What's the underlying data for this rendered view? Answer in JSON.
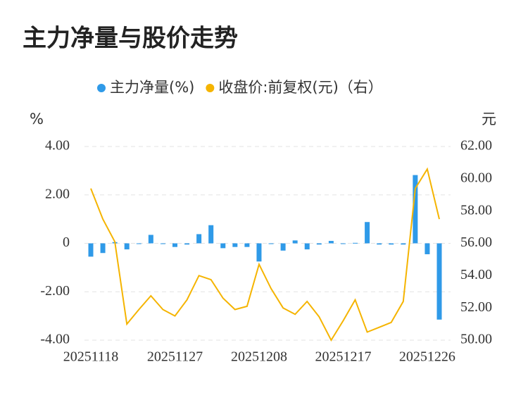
{
  "chart_data": {
    "type": "bar-line",
    "title": "主力净量与股价走势",
    "ylabel": "%",
    "y2label": "元",
    "categories": [
      "20251118",
      null,
      null,
      null,
      null,
      null,
      null,
      "20251127",
      null,
      null,
      null,
      null,
      null,
      null,
      "20251208",
      null,
      null,
      null,
      null,
      null,
      null,
      "20251217",
      null,
      null,
      null,
      null,
      null,
      null,
      "20251226",
      null
    ],
    "series": [
      {
        "name": "主力净量(%)",
        "color": "#2f9ae8",
        "type": "bar",
        "values": [
          -0.55,
          -0.4,
          0.05,
          -0.25,
          -0.02,
          0.35,
          -0.03,
          -0.15,
          -0.05,
          0.38,
          0.75,
          -0.2,
          -0.15,
          -0.15,
          -0.75,
          -0.03,
          -0.3,
          0.12,
          -0.25,
          -0.05,
          0.1,
          -0.02,
          0.02,
          0.88,
          -0.05,
          -0.05,
          -0.05,
          2.82,
          -0.45,
          -3.15
        ]
      },
      {
        "name": "收盘价:前复权(元)（右）",
        "color": "#f5b400",
        "type": "line",
        "axis": "y2",
        "values": [
          59.4,
          57.5,
          56.1,
          51.0,
          51.9,
          52.75,
          51.9,
          51.5,
          52.5,
          54.0,
          53.75,
          52.6,
          51.9,
          52.1,
          54.7,
          53.2,
          52.0,
          51.6,
          52.4,
          51.45,
          50.0,
          51.2,
          52.5,
          50.5,
          50.8,
          51.1,
          52.4,
          59.4,
          60.6,
          57.5
        ]
      }
    ],
    "ylim": [
      -4,
      4
    ],
    "yticks": [
      {
        "value": 4,
        "label": "4.00"
      },
      {
        "value": 2,
        "label": "2.00"
      },
      0,
      {
        "value": -2,
        "label": "-2.00"
      },
      {
        "value": -4,
        "label": "-4.00"
      }
    ],
    "y2lim": [
      50,
      62
    ],
    "y2ticks": [
      {
        "value": 62,
        "label": "62.00"
      },
      {
        "value": 60,
        "label": "60.00"
      },
      {
        "value": 58,
        "label": "58.00"
      },
      {
        "value": 56,
        "label": "56.00"
      },
      {
        "value": 54,
        "label": "54.00"
      },
      {
        "value": 52,
        "label": "52.00"
      },
      {
        "value": 50,
        "label": "50.00"
      }
    ],
    "grid": true
  }
}
